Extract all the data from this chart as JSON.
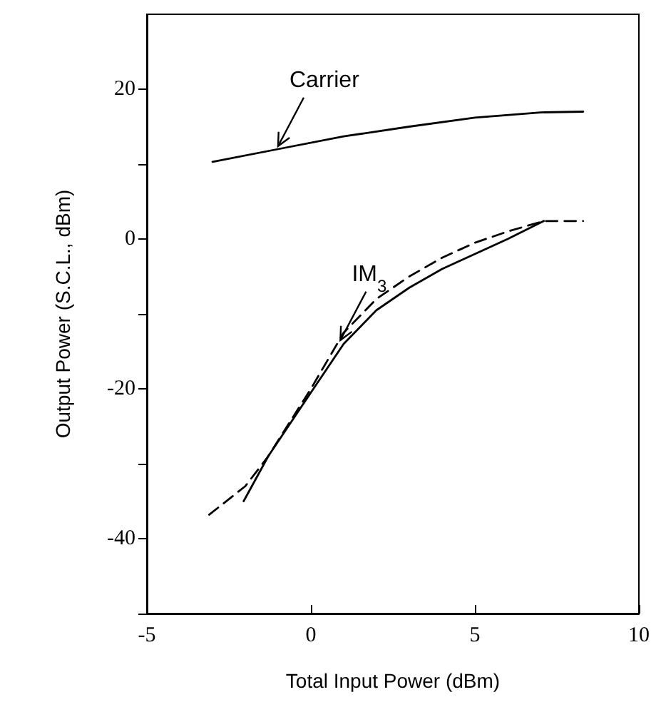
{
  "chart_data": {
    "type": "line",
    "xlabel": "Total Input Power (dBm)",
    "ylabel": "Output Power (S.C.L., dBm)",
    "xlim": [
      -5,
      10
    ],
    "xticks": [
      -5,
      0,
      5,
      10
    ],
    "ylim": [
      -50,
      30
    ],
    "yticks": [
      {
        "value": -50,
        "label": null
      },
      -40,
      {
        "value": -30,
        "label": null
      },
      -20,
      {
        "value": -10,
        "label": null
      },
      0,
      {
        "value": 10,
        "label": null
      },
      20
    ],
    "grid": false,
    "marker": "none",
    "series": [
      {
        "color": "#000000",
        "line_style": "solid",
        "x": [
          -3,
          -1,
          1,
          3,
          5,
          7,
          8.3
        ],
        "values": [
          10.3,
          12,
          13.7,
          15,
          16.2,
          16.9,
          17
        ]
      },
      {
        "color": "#000000",
        "line_style": "solid",
        "x": [
          -2.05,
          -1.3,
          0,
          1,
          2,
          3,
          4,
          5,
          6,
          7.1
        ],
        "values": [
          -35,
          -29,
          -20.5,
          -14,
          -9.5,
          -6.5,
          -4,
          -2,
          0,
          2.4
        ]
      },
      {
        "color": "#000000",
        "line_style": "dashed",
        "x": [
          -3.1,
          -2,
          -1.3,
          0,
          1,
          2,
          3,
          4,
          5,
          6,
          7.1,
          8.3
        ],
        "values": [
          -36.8,
          -33,
          -29,
          -20,
          -12.5,
          -8,
          -5,
          -2.5,
          -0.5,
          1,
          2.4,
          2.4
        ]
      }
    ],
    "annotations": [
      {
        "text": "Carrier",
        "x": -1,
        "y": 12.4
      },
      {
        "text": "IM$_{3}$",
        "x": 0.9,
        "y": -13.5
      }
    ]
  }
}
